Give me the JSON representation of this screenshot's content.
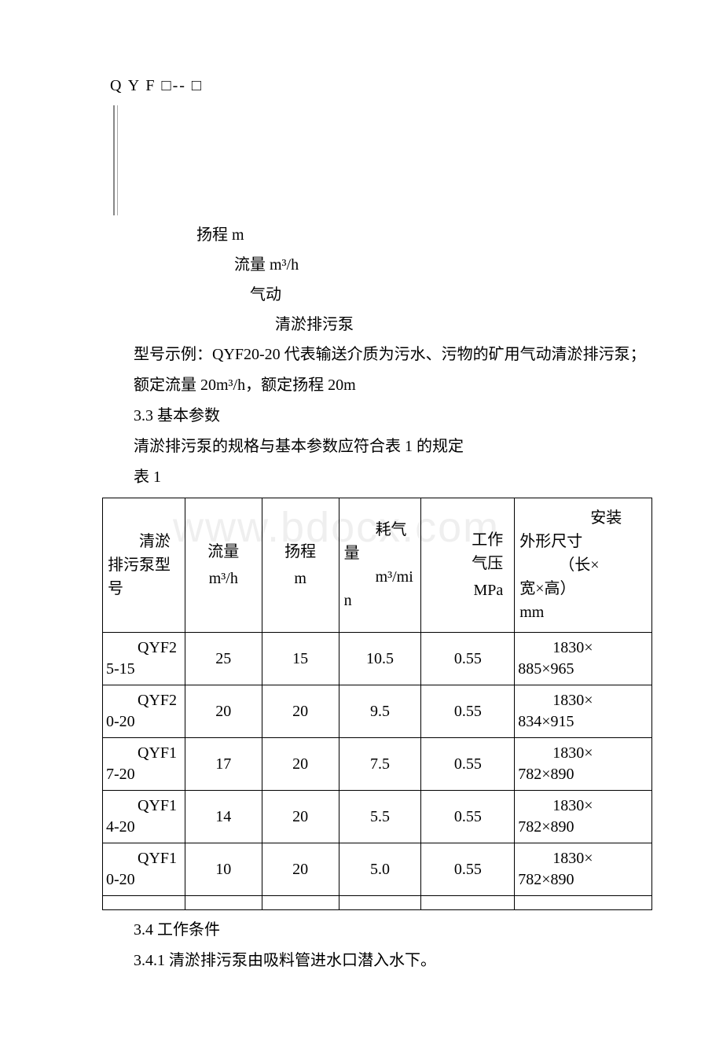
{
  "model": {
    "code": "Q Y F □-- □",
    "legend": {
      "head": "扬程 m",
      "flow": "流量 m³/h",
      "pneumatic": "气动",
      "pump": "清淤排污泵"
    }
  },
  "example": {
    "line1": "型号示例：QYF20-20 代表输送介质为污水、污物的矿用气动清淤排污泵；",
    "line2": "额定流量 20m³/h，额定扬程 20m"
  },
  "section33": {
    "title": "3.3 基本参数",
    "desc": "清淤排污泵的规格与基本参数应符合表 1 的规定",
    "tableLabel": "表 1"
  },
  "table": {
    "columns": {
      "model": {
        "label1": "清淤",
        "label2": "排污泵型",
        "label3": "号"
      },
      "flow": {
        "label": "流量",
        "unit": "m³/h"
      },
      "head": {
        "label": "扬程",
        "unit": "m"
      },
      "air": {
        "label1": "耗气",
        "label2": "量",
        "unit": "m³/mi",
        "unit2": "n"
      },
      "press": {
        "label1": "工作",
        "label2": "气压",
        "unit": "MPa"
      },
      "dim": {
        "label1": "安装",
        "label2": "外形尺寸",
        "label3": "（长×",
        "label4": "宽×高）",
        "unit": "mm"
      }
    },
    "rows": [
      {
        "model1": "QYF2",
        "model2": "5-15",
        "flow": "25",
        "head": "15",
        "air": "10.5",
        "press": "0.55",
        "dim1": "1830×",
        "dim2": "885×965"
      },
      {
        "model1": "QYF2",
        "model2": "0-20",
        "flow": "20",
        "head": "20",
        "air": "9.5",
        "press": "0.55",
        "dim1": "1830×",
        "dim2": "834×915"
      },
      {
        "model1": "QYF1",
        "model2": "7-20",
        "flow": "17",
        "head": "20",
        "air": "7.5",
        "press": "0.55",
        "dim1": "1830×",
        "dim2": "782×890"
      },
      {
        "model1": "QYF1",
        "model2": "4-20",
        "flow": "14",
        "head": "20",
        "air": "5.5",
        "press": "0.55",
        "dim1": "1830×",
        "dim2": "782×890"
      },
      {
        "model1": "QYF1",
        "model2": "0-20",
        "flow": "10",
        "head": "20",
        "air": "5.0",
        "press": "0.55",
        "dim1": "1830×",
        "dim2": "782×890"
      }
    ]
  },
  "section34": {
    "title": "3.4 工作条件",
    "item1": "3.4.1 清淤排污泵由吸料管进水口潜入水下。"
  },
  "watermark": "www.bdocx.com",
  "styling": {
    "background": "#ffffff",
    "text_color": "#000000",
    "border_color": "#000000",
    "watermark_color": "#efefef",
    "body_fontsize": 20,
    "font_family": "SimSun"
  }
}
